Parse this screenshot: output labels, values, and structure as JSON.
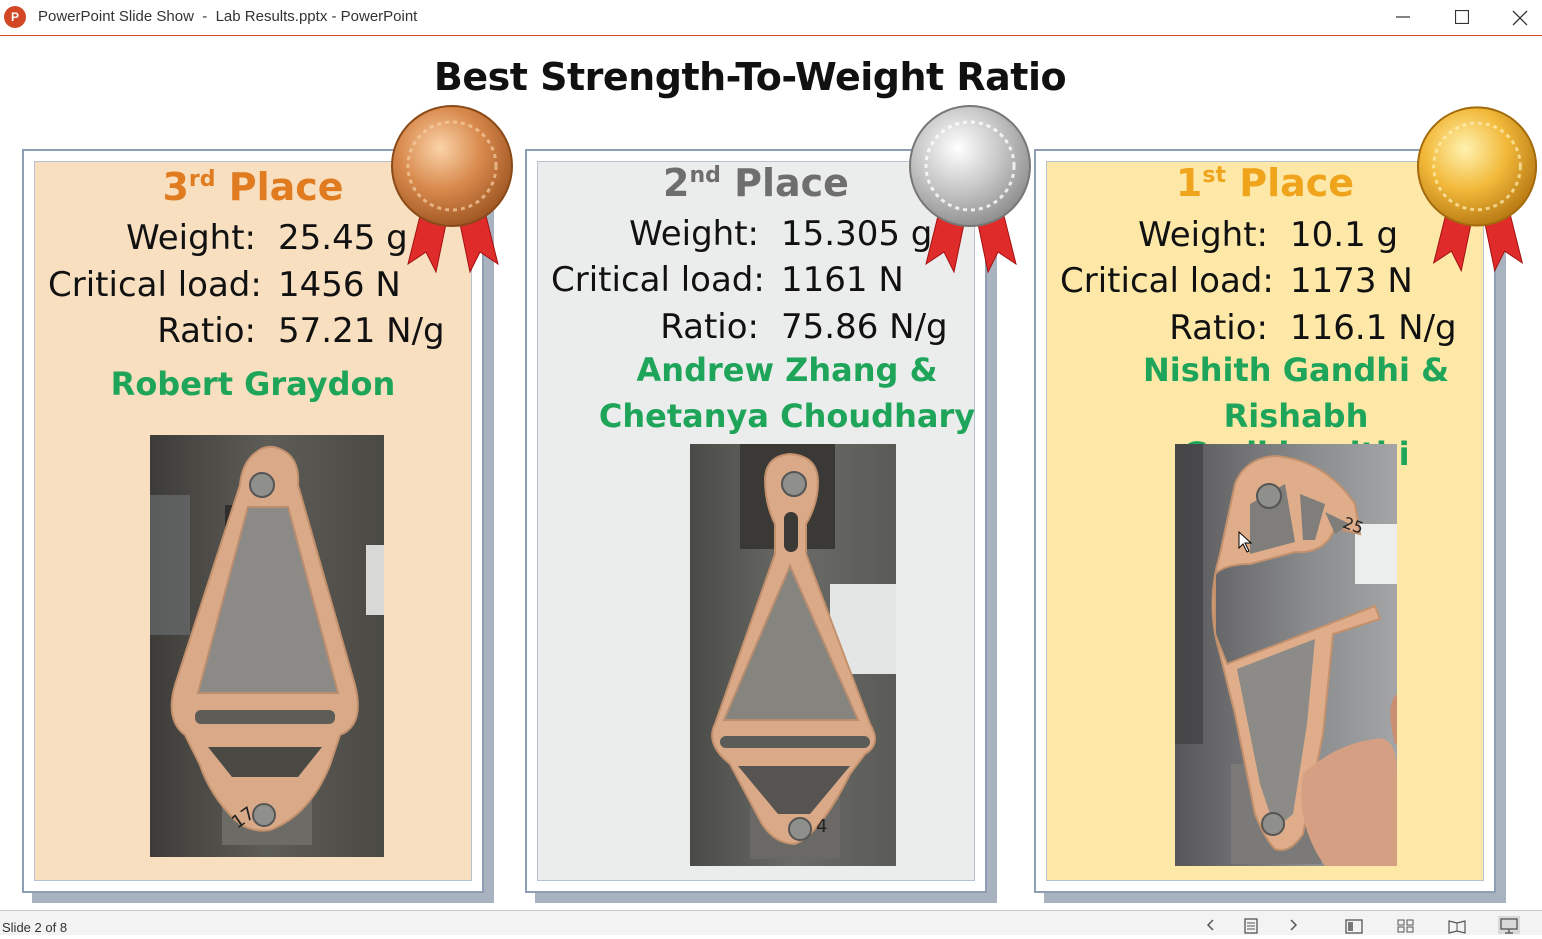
{
  "window": {
    "title": "PowerPoint Slide Show  -  Lab Results.pptx - PowerPoint",
    "app_icon_letter": "P",
    "accent": "#d24726"
  },
  "slide": {
    "title": "Best Strength-To-Weight Ratio",
    "cards": [
      {
        "place_num": "3",
        "place_suffix": "rd",
        "place_word": "Place",
        "place_color": "#e07b1f",
        "bg": "#f7dfc0",
        "weight_label": "Weight:",
        "weight_value": "25.45 g",
        "load_label": "Critical load:",
        "load_value": "1456 N",
        "ratio_label": "Ratio:",
        "ratio_value": "57.21 N/g",
        "winner_line1": "Robert Graydon",
        "winner_line2": "",
        "medal": "bronze",
        "specimen_mark": "17"
      },
      {
        "place_num": "2",
        "place_suffix": "nd",
        "place_word": "Place",
        "place_color": "#6e6e6e",
        "bg": "#eaedeb",
        "weight_label": "Weight:",
        "weight_value": "15.305 g",
        "load_label": "Critical load:",
        "load_value": "1161 N",
        "ratio_label": "Ratio:",
        "ratio_value": "75.86 N/g",
        "winner_line1": "Andrew Zhang &",
        "winner_line2": "Chetanya Choudhary",
        "medal": "silver",
        "specimen_mark": "4"
      },
      {
        "place_num": "1",
        "place_suffix": "st",
        "place_word": "Place",
        "place_color": "#f0a41c",
        "bg": "#fde8a8",
        "weight_label": "Weight:",
        "weight_value": "10.1 g",
        "load_label": "Critical load:",
        "load_value": "1173 N",
        "ratio_label": "Ratio:",
        "ratio_value": "116.1 N/g",
        "winner_line1": "Nishith Gandhi &",
        "winner_line2": "Rishabh Garikiparithi",
        "medal": "gold",
        "specimen_mark": "25"
      }
    ]
  },
  "status": {
    "slide_counter": "Slide 2 of 8",
    "buttons": [
      "previous-icon",
      "notes-icon",
      "next-icon",
      "normal-view-icon",
      "slide-sorter-icon",
      "reading-view-icon",
      "slide-show-icon"
    ]
  }
}
